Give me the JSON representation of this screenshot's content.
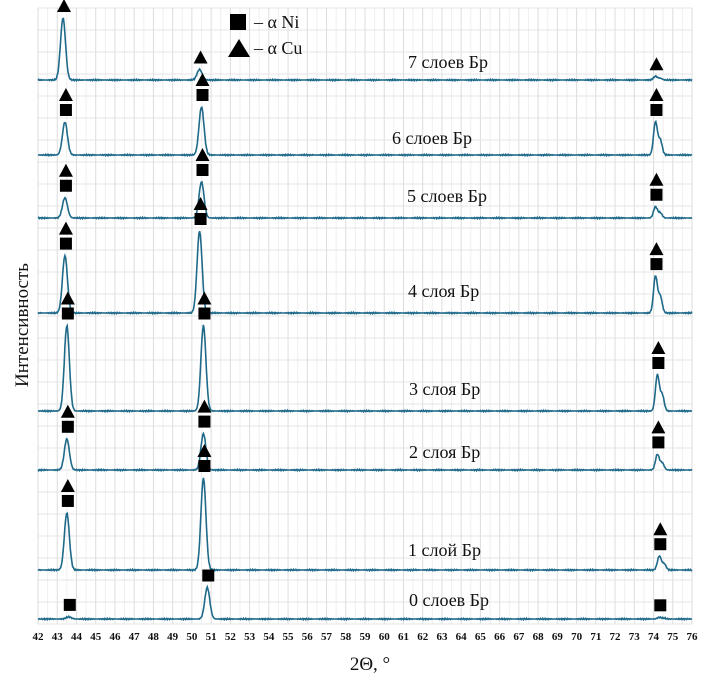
{
  "chart_data": {
    "type": "line",
    "xlabel": "2Θ, °",
    "ylabel": "Интенсивность",
    "xlim": [
      42,
      76
    ],
    "x_ticks": [
      42,
      43,
      44,
      45,
      46,
      47,
      48,
      49,
      50,
      51,
      52,
      53,
      54,
      55,
      56,
      57,
      58,
      59,
      60,
      61,
      62,
      63,
      64,
      65,
      66,
      67,
      68,
      69,
      70,
      71,
      72,
      73,
      74,
      75,
      76
    ],
    "grid": true,
    "line_color": "#1f6a8a",
    "legend_position": "top-center",
    "legend": [
      {
        "marker": "square",
        "label": "– α Ni"
      },
      {
        "marker": "triangle",
        "label": "– α Cu"
      }
    ],
    "series": [
      {
        "name": "7 слоев Бр",
        "peaks": [
          {
            "x": 43.3,
            "rel": 1.0,
            "markers": [
              "triangle"
            ]
          },
          {
            "x": 50.4,
            "rel": 0.17,
            "markers": [
              "triangle"
            ]
          },
          {
            "x": 74.1,
            "rel": 0.06,
            "markers": [
              "triangle"
            ]
          }
        ]
      },
      {
        "name": "6 слоев Бр",
        "peaks": [
          {
            "x": 43.4,
            "rel": 0.55,
            "markers": [
              "triangle",
              "square"
            ]
          },
          {
            "x": 50.5,
            "rel": 0.8,
            "markers": [
              "triangle",
              "square"
            ]
          },
          {
            "x": 74.1,
            "rel": 0.55,
            "markers": [
              "triangle",
              "square"
            ]
          }
        ]
      },
      {
        "name": "5 слоев Бр",
        "peaks": [
          {
            "x": 43.4,
            "rel": 0.45,
            "markers": [
              "triangle",
              "square"
            ]
          },
          {
            "x": 50.5,
            "rel": 0.8,
            "markers": [
              "triangle",
              "square"
            ]
          },
          {
            "x": 74.1,
            "rel": 0.25,
            "markers": [
              "triangle",
              "square"
            ]
          }
        ]
      },
      {
        "name": "4 слоя Бр",
        "peaks": [
          {
            "x": 43.4,
            "rel": 0.7,
            "markers": [
              "triangle",
              "square"
            ]
          },
          {
            "x": 50.4,
            "rel": 1.0,
            "markers": [
              "triangle",
              "square"
            ]
          },
          {
            "x": 74.1,
            "rel": 0.45,
            "markers": [
              "triangle",
              "square"
            ]
          }
        ]
      },
      {
        "name": "3 слоя Бр",
        "peaks": [
          {
            "x": 43.5,
            "rel": 0.95,
            "markers": [
              "triangle",
              "square"
            ]
          },
          {
            "x": 50.6,
            "rel": 0.95,
            "markers": [
              "triangle",
              "square"
            ]
          },
          {
            "x": 74.2,
            "rel": 0.4,
            "markers": [
              "triangle",
              "square"
            ]
          }
        ]
      },
      {
        "name": "2 слоя Бр",
        "peaks": [
          {
            "x": 43.5,
            "rel": 0.6,
            "markers": [
              "triangle",
              "square"
            ]
          },
          {
            "x": 50.6,
            "rel": 0.7,
            "markers": [
              "triangle",
              "square"
            ]
          },
          {
            "x": 74.2,
            "rel": 0.3,
            "markers": [
              "triangle",
              "square"
            ]
          }
        ]
      },
      {
        "name": "1 слой Бр",
        "peaks": [
          {
            "x": 43.5,
            "rel": 0.62,
            "markers": [
              "triangle",
              "square"
            ]
          },
          {
            "x": 50.6,
            "rel": 1.0,
            "markers": [
              "triangle",
              "square"
            ]
          },
          {
            "x": 74.3,
            "rel": 0.15,
            "markers": [
              "triangle",
              "square"
            ]
          }
        ]
      },
      {
        "name": "0 слоев Бр",
        "peaks": [
          {
            "x": 43.6,
            "rel": 0.05,
            "markers": [
              "square"
            ]
          },
          {
            "x": 50.8,
            "rel": 0.75,
            "markers": [
              "square"
            ]
          },
          {
            "x": 74.3,
            "rel": 0.04,
            "markers": [
              "square"
            ]
          }
        ]
      }
    ]
  }
}
